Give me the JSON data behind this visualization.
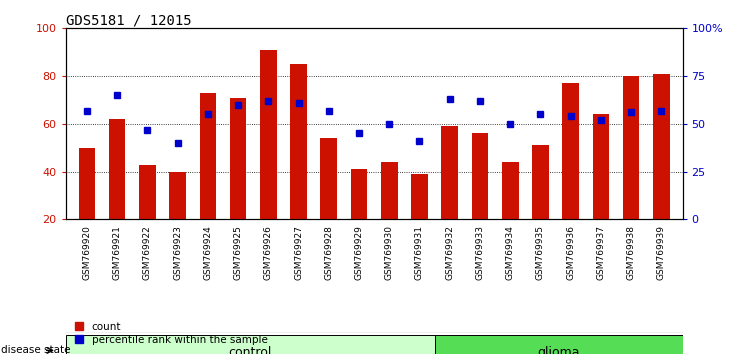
{
  "title": "GDS5181 / 12015",
  "samples": [
    "GSM769920",
    "GSM769921",
    "GSM769922",
    "GSM769923",
    "GSM769924",
    "GSM769925",
    "GSM769926",
    "GSM769927",
    "GSM769928",
    "GSM769929",
    "GSM769930",
    "GSM769931",
    "GSM769932",
    "GSM769933",
    "GSM769934",
    "GSM769935",
    "GSM769936",
    "GSM769937",
    "GSM769938",
    "GSM769939"
  ],
  "bar_values": [
    50,
    62,
    43,
    40,
    73,
    71,
    91,
    85,
    54,
    41,
    44,
    39,
    59,
    56,
    44,
    51,
    77,
    64,
    80,
    81
  ],
  "blue_values_pct": [
    57,
    65,
    47,
    40,
    55,
    60,
    62,
    61,
    57,
    45,
    50,
    41,
    63,
    62,
    50,
    55,
    54,
    52,
    56,
    57
  ],
  "control_count": 12,
  "glioma_count": 8,
  "bar_color": "#cc1100",
  "blue_color": "#0000cc",
  "control_bg": "#ccffcc",
  "glioma_bg": "#55dd55",
  "tick_bg": "#cccccc",
  "ylim_left": [
    20,
    100
  ],
  "ylim_right": [
    0,
    100
  ],
  "right_ticks": [
    0,
    25,
    50,
    75,
    100
  ],
  "right_tick_labels": [
    "0",
    "25",
    "50",
    "75",
    "100%"
  ],
  "left_ticks": [
    20,
    40,
    60,
    80,
    100
  ],
  "grid_lines": [
    40,
    60,
    80
  ],
  "legend_labels": [
    "count",
    "percentile rank within the sample"
  ]
}
